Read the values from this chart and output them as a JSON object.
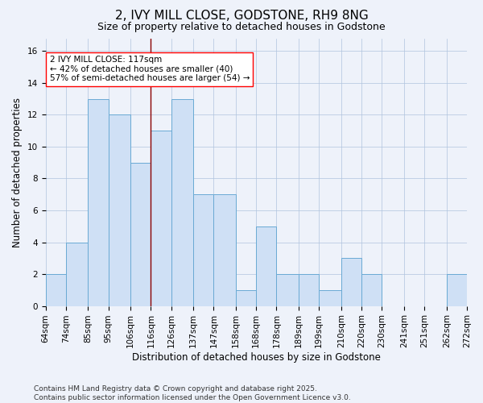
{
  "title": "2, IVY MILL CLOSE, GODSTONE, RH9 8NG",
  "subtitle": "Size of property relative to detached houses in Godstone",
  "xlabel": "Distribution of detached houses by size in Godstone",
  "ylabel": "Number of detached properties",
  "bin_edges": [
    64,
    74,
    85,
    95,
    106,
    116,
    126,
    137,
    147,
    158,
    168,
    178,
    189,
    199,
    210,
    220,
    230,
    241,
    251,
    262,
    272
  ],
  "bar_heights": [
    2,
    4,
    13,
    12,
    9,
    11,
    13,
    7,
    7,
    1,
    5,
    2,
    2,
    1,
    3,
    2,
    0,
    0,
    0,
    2,
    0
  ],
  "bar_color": "#cfe0f5",
  "bar_edgecolor": "#6aaad4",
  "vline_x": 116,
  "vline_color": "#8b0000",
  "annotation_text": "2 IVY MILL CLOSE: 117sqm\n← 42% of detached houses are smaller (40)\n57% of semi-detached houses are larger (54) →",
  "annotation_fontsize": 7.5,
  "annotation_box_color": "white",
  "annotation_box_edgecolor": "red",
  "ylim": [
    0,
    16.8
  ],
  "yticks": [
    0,
    2,
    4,
    6,
    8,
    10,
    12,
    14,
    16
  ],
  "title_fontsize": 11,
  "subtitle_fontsize": 9,
  "xlabel_fontsize": 8.5,
  "ylabel_fontsize": 8.5,
  "tick_fontsize": 7.5,
  "background_color": "#eef2fa",
  "footer_text": "Contains HM Land Registry data © Crown copyright and database right 2025.\nContains public sector information licensed under the Open Government Licence v3.0.",
  "footer_fontsize": 6.5
}
